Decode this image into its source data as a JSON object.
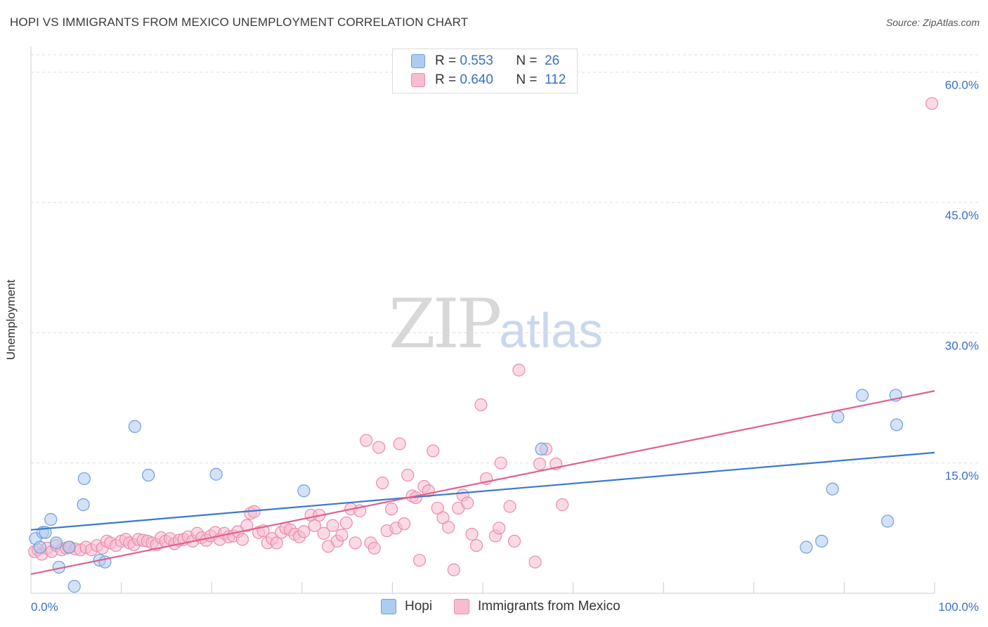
{
  "title": "HOPI VS IMMIGRANTS FROM MEXICO UNEMPLOYMENT CORRELATION CHART",
  "source": "Source: ZipAtlas.com",
  "watermark": {
    "zip": "ZIP",
    "atlas": "atlas"
  },
  "legend": {
    "hopi": {
      "r_label": "R =",
      "r_value": "0.553",
      "n_label": "N =",
      "n_value": "26"
    },
    "mexico": {
      "r_label": "R =",
      "r_value": "0.640",
      "n_label": "N =",
      "n_value": "112"
    }
  },
  "bottom_legend": {
    "hopi": "Hopi",
    "mexico": "Immigrants from Mexico"
  },
  "colors": {
    "hopi_fill": "#aecbf0",
    "hopi_stroke": "#6f9fdc",
    "hopi_line": "#3a78d0",
    "mexico_fill": "#f8bccf",
    "mexico_stroke": "#e98cab",
    "mexico_line": "#e0608f",
    "tick_label": "#3b6fc4",
    "grid": "#dddddd"
  },
  "chart_data": {
    "type": "scatter",
    "title": "HOPI VS IMMIGRANTS FROM MEXICO UNEMPLOYMENT CORRELATION CHART",
    "xlabel": "",
    "ylabel": "Unemployment",
    "xlim": [
      0,
      100
    ],
    "ylim": [
      0,
      62
    ],
    "x_tick_labels": [
      {
        "value": 0,
        "label": "0.0%"
      },
      {
        "value": 100,
        "label": "100.0%"
      }
    ],
    "y_ticks": [
      {
        "value": 15,
        "label": "15.0%"
      },
      {
        "value": 30,
        "label": "30.0%"
      },
      {
        "value": 45,
        "label": "45.0%"
      },
      {
        "value": 60,
        "label": "60.0%"
      }
    ],
    "x_minor_ticks": [
      0,
      10,
      20,
      30,
      40,
      50,
      60,
      70,
      80,
      90,
      100
    ],
    "series": [
      {
        "name": "Hopi",
        "trendline": {
          "x": [
            0,
            100
          ],
          "y": [
            7.3,
            16.2
          ]
        },
        "points": [
          [
            0.5,
            6.3
          ],
          [
            1.0,
            5.3
          ],
          [
            1.3,
            7.0
          ],
          [
            1.6,
            7.0
          ],
          [
            2.2,
            8.5
          ],
          [
            2.8,
            5.8
          ],
          [
            3.1,
            3.0
          ],
          [
            4.2,
            5.3
          ],
          [
            4.8,
            0.8
          ],
          [
            5.8,
            10.2
          ],
          [
            5.9,
            13.2
          ],
          [
            7.6,
            3.8
          ],
          [
            8.2,
            3.6
          ],
          [
            11.5,
            19.2
          ],
          [
            13.0,
            13.6
          ],
          [
            20.5,
            13.7
          ],
          [
            30.2,
            11.8
          ],
          [
            56.5,
            16.6
          ],
          [
            85.8,
            5.3
          ],
          [
            87.5,
            6.0
          ],
          [
            88.7,
            12.0
          ],
          [
            89.3,
            20.3
          ],
          [
            92.0,
            22.8
          ],
          [
            94.8,
            8.3
          ],
          [
            95.7,
            22.8
          ],
          [
            95.8,
            19.4
          ]
        ]
      },
      {
        "name": "Immigrants from Mexico",
        "trendline": {
          "x": [
            0,
            100
          ],
          "y": [
            2.2,
            23.3
          ]
        },
        "points": [
          [
            0.4,
            4.8
          ],
          [
            0.8,
            5.0
          ],
          [
            1.2,
            4.5
          ],
          [
            1.8,
            5.2
          ],
          [
            2.3,
            4.8
          ],
          [
            2.8,
            5.5
          ],
          [
            3.4,
            5.0
          ],
          [
            3.9,
            5.2
          ],
          [
            4.3,
            5.3
          ],
          [
            4.9,
            5.1
          ],
          [
            5.5,
            5.0
          ],
          [
            6.1,
            5.3
          ],
          [
            6.7,
            5.0
          ],
          [
            7.3,
            5.5
          ],
          [
            7.9,
            5.2
          ],
          [
            8.4,
            6.0
          ],
          [
            8.8,
            5.8
          ],
          [
            9.4,
            5.5
          ],
          [
            10.0,
            6.0
          ],
          [
            10.5,
            6.2
          ],
          [
            10.9,
            5.8
          ],
          [
            11.4,
            5.6
          ],
          [
            11.9,
            6.2
          ],
          [
            12.4,
            6.1
          ],
          [
            12.9,
            6.0
          ],
          [
            13.4,
            5.8
          ],
          [
            13.9,
            5.6
          ],
          [
            14.4,
            6.4
          ],
          [
            14.9,
            6.0
          ],
          [
            15.4,
            6.3
          ],
          [
            15.9,
            5.7
          ],
          [
            16.4,
            6.1
          ],
          [
            16.9,
            6.2
          ],
          [
            17.4,
            6.5
          ],
          [
            17.9,
            6.0
          ],
          [
            18.4,
            6.9
          ],
          [
            18.9,
            6.4
          ],
          [
            19.4,
            6.1
          ],
          [
            19.9,
            6.6
          ],
          [
            20.4,
            7.0
          ],
          [
            20.9,
            6.2
          ],
          [
            21.4,
            6.9
          ],
          [
            21.9,
            6.5
          ],
          [
            22.4,
            6.6
          ],
          [
            22.9,
            7.1
          ],
          [
            23.4,
            6.2
          ],
          [
            23.9,
            7.8
          ],
          [
            24.3,
            9.2
          ],
          [
            24.7,
            9.4
          ],
          [
            25.2,
            7.0
          ],
          [
            25.7,
            7.2
          ],
          [
            26.2,
            5.8
          ],
          [
            26.7,
            6.3
          ],
          [
            27.2,
            5.8
          ],
          [
            27.7,
            7.0
          ],
          [
            28.2,
            7.5
          ],
          [
            28.7,
            7.3
          ],
          [
            29.2,
            6.8
          ],
          [
            29.7,
            6.5
          ],
          [
            30.2,
            7.1
          ],
          [
            31.0,
            9.0
          ],
          [
            31.4,
            7.8
          ],
          [
            31.9,
            9.0
          ],
          [
            32.4,
            6.9
          ],
          [
            32.9,
            5.4
          ],
          [
            33.4,
            7.8
          ],
          [
            33.9,
            6.0
          ],
          [
            34.4,
            6.7
          ],
          [
            34.9,
            8.1
          ],
          [
            35.4,
            9.7
          ],
          [
            35.9,
            5.8
          ],
          [
            36.4,
            9.5
          ],
          [
            37.1,
            17.6
          ],
          [
            37.6,
            5.8
          ],
          [
            38.0,
            5.2
          ],
          [
            38.5,
            16.8
          ],
          [
            38.9,
            12.7
          ],
          [
            39.4,
            7.2
          ],
          [
            39.9,
            9.7
          ],
          [
            40.4,
            7.5
          ],
          [
            40.8,
            17.2
          ],
          [
            41.3,
            8.0
          ],
          [
            41.7,
            13.6
          ],
          [
            42.2,
            11.2
          ],
          [
            42.6,
            11.0
          ],
          [
            43.0,
            3.8
          ],
          [
            43.5,
            12.3
          ],
          [
            44.0,
            11.8
          ],
          [
            44.5,
            16.4
          ],
          [
            45.0,
            9.8
          ],
          [
            45.6,
            8.7
          ],
          [
            46.2,
            7.6
          ],
          [
            46.8,
            2.7
          ],
          [
            47.3,
            9.8
          ],
          [
            47.8,
            11.3
          ],
          [
            48.3,
            10.4
          ],
          [
            48.8,
            6.8
          ],
          [
            49.3,
            5.5
          ],
          [
            49.8,
            21.7
          ],
          [
            50.4,
            13.2
          ],
          [
            51.4,
            6.6
          ],
          [
            51.8,
            7.5
          ],
          [
            52.0,
            15.0
          ],
          [
            53.0,
            10.0
          ],
          [
            53.5,
            6.0
          ],
          [
            54.0,
            25.7
          ],
          [
            55.8,
            3.6
          ],
          [
            56.3,
            14.9
          ],
          [
            57.0,
            16.6
          ],
          [
            58.1,
            14.9
          ],
          [
            58.8,
            10.2
          ],
          [
            99.7,
            56.4
          ]
        ]
      }
    ]
  }
}
